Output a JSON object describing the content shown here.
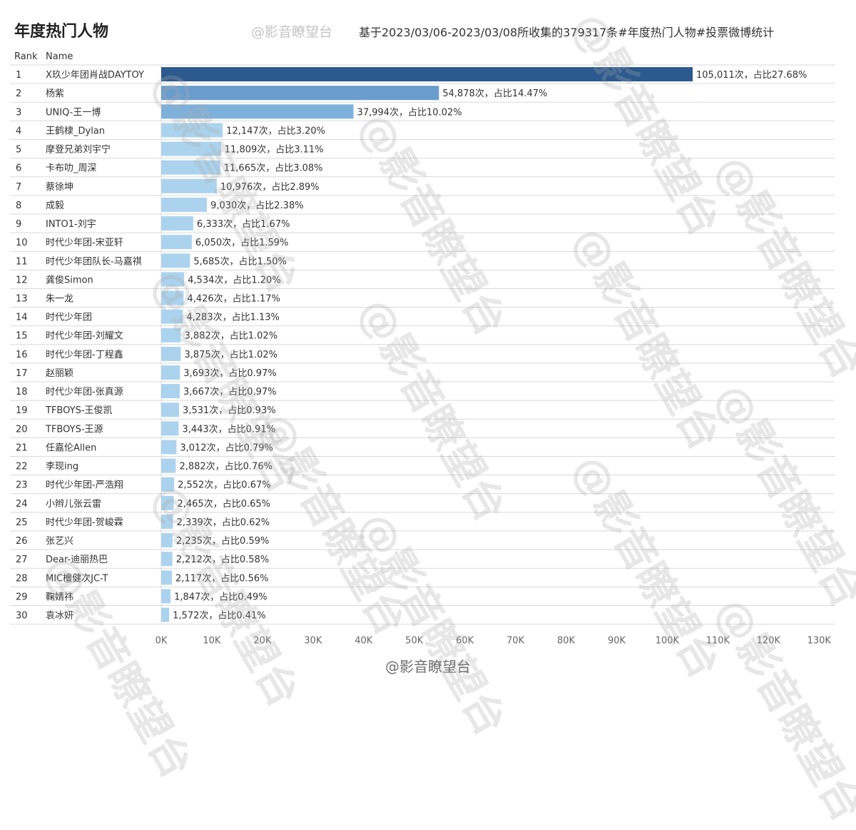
{
  "header": {
    "title": "年度热门人物",
    "handle": "@影音瞭望台",
    "subtitle": "基于2023/03/06-2023/03/08所收集的379317条#年度热门人物#投票微博统计"
  },
  "columns": {
    "rank": "Rank",
    "name": "Name"
  },
  "footer": {
    "handle": "@影音瞭望台"
  },
  "watermark": {
    "text": "@影音瞭望台"
  },
  "colors": {
    "bar_top": "#2c5a8f",
    "bar_second": "#6a9dcd",
    "bar_third": "#7eb0dc",
    "bar_rest": "#acd3ee",
    "grid": "#d9d9d9"
  },
  "chart_data": {
    "type": "bar",
    "orientation": "horizontal",
    "xlim": [
      0,
      130000
    ],
    "xticks": [
      {
        "value": 0,
        "label": "0K"
      },
      {
        "value": 10000,
        "label": "10K"
      },
      {
        "value": 20000,
        "label": "20K"
      },
      {
        "value": 30000,
        "label": "30K"
      },
      {
        "value": 40000,
        "label": "40K"
      },
      {
        "value": 50000,
        "label": "50K"
      },
      {
        "value": 60000,
        "label": "60K"
      },
      {
        "value": 70000,
        "label": "70K"
      },
      {
        "value": 80000,
        "label": "80K"
      },
      {
        "value": 90000,
        "label": "90K"
      },
      {
        "value": 100000,
        "label": "100K"
      },
      {
        "value": 110000,
        "label": "110K"
      },
      {
        "value": 120000,
        "label": "120K"
      },
      {
        "value": 130000,
        "label": "130K"
      }
    ],
    "rows": [
      {
        "rank": "1",
        "name": "X玖少年团肖战DAYTOY",
        "value": 105011,
        "label": "105,011次，占比27.68%"
      },
      {
        "rank": "2",
        "name": "杨紫",
        "value": 54878,
        "label": "54,878次，占比14.47%"
      },
      {
        "rank": "3",
        "name": "UNIQ-王一博",
        "value": 37994,
        "label": "37,994次，占比10.02%"
      },
      {
        "rank": "4",
        "name": "王鹤棣_Dylan",
        "value": 12147,
        "label": "12,147次，占比3.20%"
      },
      {
        "rank": "5",
        "name": "摩登兄弟刘宇宁",
        "value": 11809,
        "label": "11,809次，占比3.11%"
      },
      {
        "rank": "6",
        "name": "卡布叻_周深",
        "value": 11665,
        "label": "11,665次，占比3.08%"
      },
      {
        "rank": "7",
        "name": "蔡徐坤",
        "value": 10976,
        "label": "10,976次，占比2.89%"
      },
      {
        "rank": "8",
        "name": "成毅",
        "value": 9030,
        "label": "9,030次，占比2.38%"
      },
      {
        "rank": "9",
        "name": "INTO1-刘宇",
        "value": 6333,
        "label": "6,333次，占比1.67%"
      },
      {
        "rank": "10",
        "name": "时代少年团-宋亚轩",
        "value": 6050,
        "label": "6,050次，占比1.59%"
      },
      {
        "rank": "11",
        "name": "时代少年团队长-马嘉祺",
        "value": 5685,
        "label": "5,685次，占比1.50%"
      },
      {
        "rank": "12",
        "name": "龚俊Simon",
        "value": 4534,
        "label": "4,534次，占比1.20%"
      },
      {
        "rank": "13",
        "name": "朱一龙",
        "value": 4426,
        "label": "4,426次，占比1.17%"
      },
      {
        "rank": "14",
        "name": "时代少年团",
        "value": 4283,
        "label": "4,283次，占比1.13%"
      },
      {
        "rank": "15",
        "name": "时代少年团-刘耀文",
        "value": 3882,
        "label": "3,882次，占比1.02%"
      },
      {
        "rank": "16",
        "name": "时代少年团-丁程鑫",
        "value": 3875,
        "label": "3,875次，占比1.02%"
      },
      {
        "rank": "17",
        "name": "赵丽颖",
        "value": 3693,
        "label": "3,693次，占比0.97%"
      },
      {
        "rank": "18",
        "name": "时代少年团-张真源",
        "value": 3667,
        "label": "3,667次，占比0.97%"
      },
      {
        "rank": "19",
        "name": "TFBOYS-王俊凯",
        "value": 3531,
        "label": "3,531次，占比0.93%"
      },
      {
        "rank": "20",
        "name": "TFBOYS-王源",
        "value": 3443,
        "label": "3,443次，占比0.91%"
      },
      {
        "rank": "21",
        "name": "任嘉伦Allen",
        "value": 3012,
        "label": "3,012次，占比0.79%"
      },
      {
        "rank": "22",
        "name": "李现ing",
        "value": 2882,
        "label": "2,882次，占比0.76%"
      },
      {
        "rank": "23",
        "name": "时代少年团-严浩翔",
        "value": 2552,
        "label": "2,552次，占比0.67%"
      },
      {
        "rank": "24",
        "name": "小辫儿张云雷",
        "value": 2465,
        "label": "2,465次，占比0.65%"
      },
      {
        "rank": "25",
        "name": "时代少年团-贺峻霖",
        "value": 2339,
        "label": "2,339次，占比0.62%"
      },
      {
        "rank": "26",
        "name": "张艺兴",
        "value": 2235,
        "label": "2,235次，占比0.59%"
      },
      {
        "rank": "27",
        "name": "Dear-迪丽热巴",
        "value": 2212,
        "label": "2,212次，占比0.58%"
      },
      {
        "rank": "28",
        "name": "MIC檀健次JC-T",
        "value": 2117,
        "label": "2,117次，占比0.56%"
      },
      {
        "rank": "29",
        "name": "鞠婧祎",
        "value": 1847,
        "label": "1,847次，占比0.49%"
      },
      {
        "rank": "30",
        "name": "袁冰妍",
        "value": 1572,
        "label": "1,572次，占比0.41%"
      }
    ]
  }
}
